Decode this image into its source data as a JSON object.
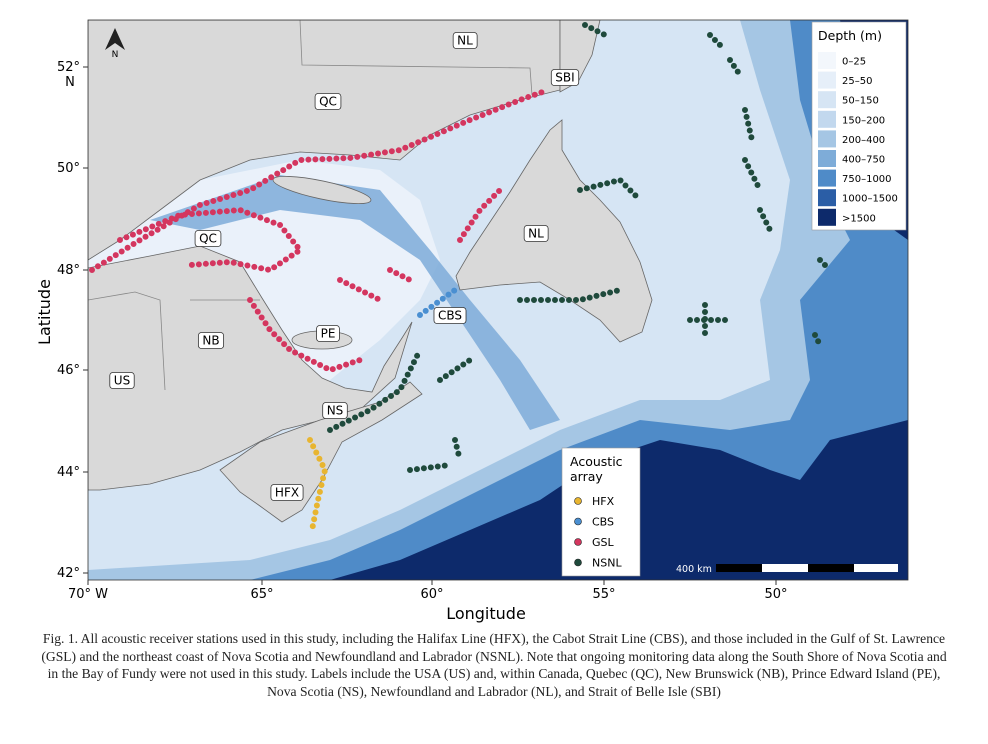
{
  "map": {
    "north_arrow": "N",
    "x_axis": {
      "label": "Longitude",
      "ticks": [
        "70° W",
        "65°",
        "60°",
        "55°",
        "50°"
      ]
    },
    "y_axis": {
      "label": "Latitude",
      "ticks": [
        "42°",
        "44°",
        "46°",
        "48°",
        "50°",
        "52°"
      ],
      "top_suffix": "N"
    },
    "region_labels": [
      "NL",
      "SBI",
      "QC",
      "NL",
      "QC",
      "NB",
      "PE",
      "CBS",
      "US",
      "NS",
      "HFX"
    ],
    "depth_legend": {
      "title": "Depth (m)",
      "items": [
        {
          "label": "0–25",
          "color": "#f3f7fc"
        },
        {
          "label": "25–50",
          "color": "#e6eff9"
        },
        {
          "label": "50–150",
          "color": "#d6e5f4"
        },
        {
          "label": "150–200",
          "color": "#c2d8ee"
        },
        {
          "label": "200–400",
          "color": "#a5c6e4"
        },
        {
          "label": "400–750",
          "color": "#7eacd8"
        },
        {
          "label": "750–1000",
          "color": "#4f8bc8"
        },
        {
          "label": "1000–1500",
          "color": "#2b5ea6"
        },
        {
          "label": ">1500",
          "color": "#0d2a6b"
        }
      ]
    },
    "array_legend": {
      "title": "Acoustic array",
      "items": [
        {
          "label": "HFX",
          "color": "#e8b530"
        },
        {
          "label": "CBS",
          "color": "#4a8fd1"
        },
        {
          "label": "GSL",
          "color": "#d4365f"
        },
        {
          "label": "NSNL",
          "color": "#1f4a3c"
        }
      ]
    },
    "scale_bar": "400 km"
  },
  "caption": "Fig. 1. All acoustic receiver stations used in this study, including the Halifax Line (HFX), the Cabot Strait Line (CBS), and those included in the Gulf of St. Lawrence (GSL) and the northeast coast of Nova Scotia and Newfoundland and Labrador (NSNL). Note that ongoing monitoring data along the South Shore of Nova Scotia and in the Bay of Fundy were not used in this study. Labels include the USA (US) and, within Canada, Quebec (QC), New Brunswick (NB), Prince Edward Island (PE), Nova Scotia (NS), Newfoundland and Labrador (NL), and Strait of Belle Isle (SBI)"
}
